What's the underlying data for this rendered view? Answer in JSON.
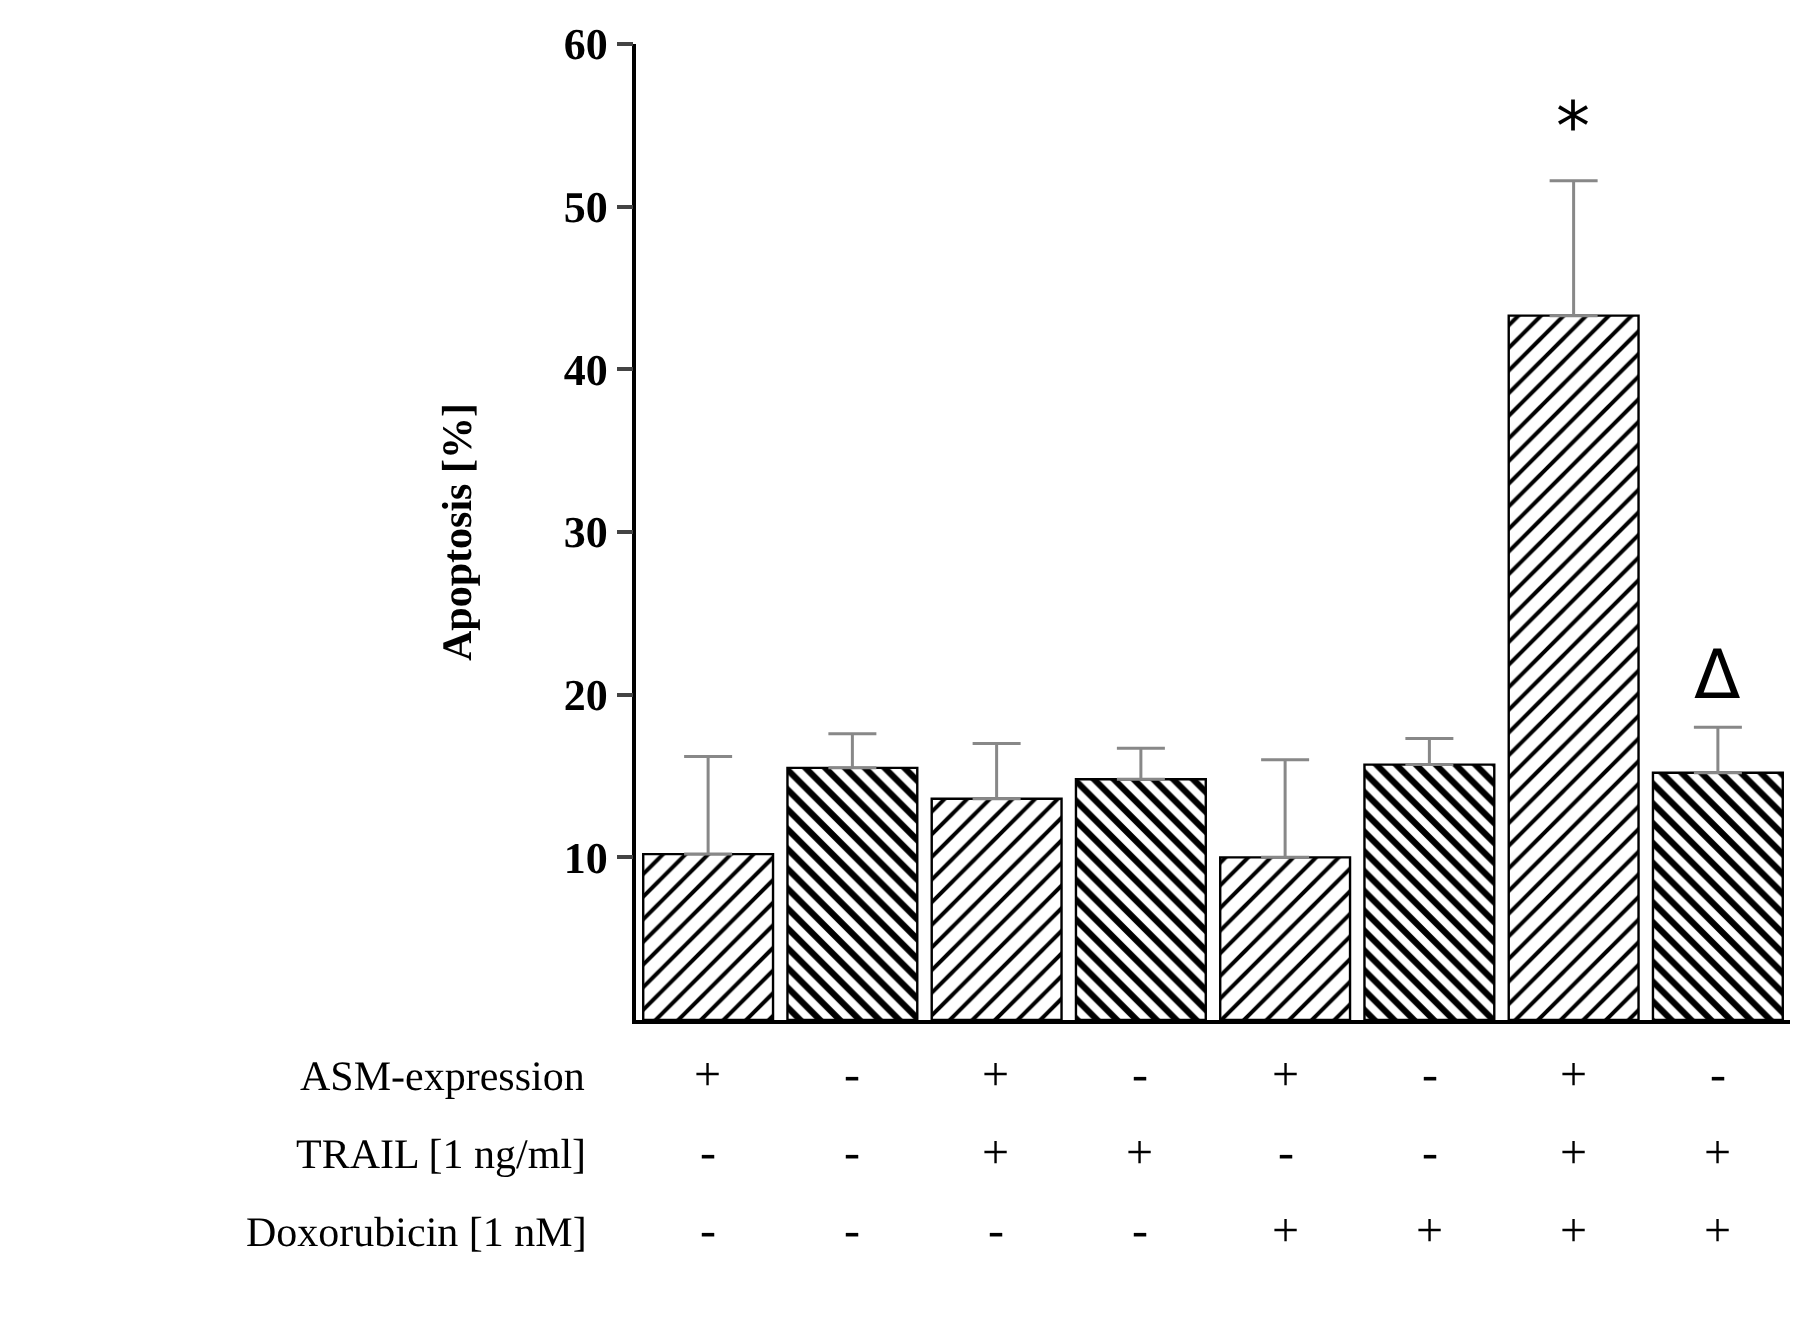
{
  "chart_data": {
    "type": "bar",
    "ylabel": "Apoptosis [%]",
    "categories": [
      "+\n-\n-",
      "-\n-\n-",
      "+\n+\n-",
      "-\n+\n-",
      "+\n-\n+",
      "-\n-\n+",
      "+\n+\n+",
      "-\n+\n+"
    ],
    "values": [
      10.2,
      15.5,
      13.6,
      14.8,
      10.0,
      15.7,
      43.3,
      15.2
    ],
    "errors": [
      [
        10.2,
        16.2
      ],
      [
        15.5,
        17.6
      ],
      [
        13.6,
        17.0
      ],
      [
        14.8,
        16.7
      ],
      [
        10.0,
        16.0
      ],
      [
        15.7,
        17.3
      ],
      [
        43.3,
        51.6
      ],
      [
        15.2,
        18.0
      ]
    ],
    "colors": [
      "#000000",
      "#000000",
      "#000000",
      "#000000",
      "#000000",
      "#000000",
      "#000000",
      "#000000"
    ],
    "ylim": [
      0,
      60
    ],
    "yticks": [
      10,
      20,
      30,
      40,
      50,
      60
    ],
    "grid": false,
    "legend": false,
    "annotations": [
      "ASM-expression",
      "TRAIL [1 ng/ml]",
      "Doxorubicin [1 nM]",
      {
        "text": "*",
        "x": "+\n+\n+",
        "y": 51.6
      },
      {
        "text": "Δ",
        "x": "-\n+\n+",
        "y": 18.0
      }
    ]
  }
}
